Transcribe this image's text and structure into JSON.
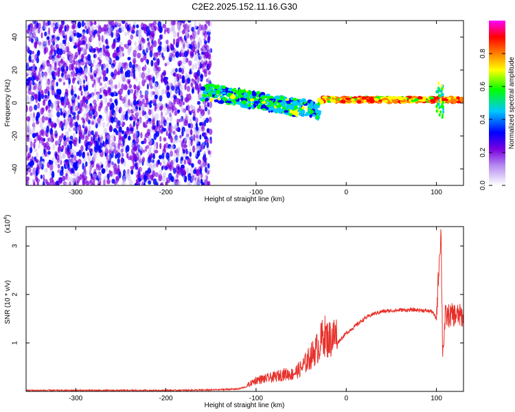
{
  "title": "C2E2.2025.152.11.16.G30",
  "chart_data": [
    {
      "type": "heatmap",
      "xlabel": "Height of straight line (km)",
      "ylabel": "Frequency (Hz)",
      "xlim": [
        -355,
        130
      ],
      "ylim": [
        -50,
        50
      ],
      "xticks": [
        "-300",
        "-200",
        "-100",
        "0",
        "100"
      ],
      "yticks": [
        "40",
        "20",
        "0",
        "-20",
        "-40"
      ],
      "colorbar": {
        "label": "Normalized spectral amplitude",
        "range": [
          0,
          1
        ],
        "ticks": [
          "0.0",
          "0.2",
          "0.4",
          "0.6",
          "0.8"
        ],
        "colormap": [
          "#c8b4f0",
          "#7a00e0",
          "#0000ff",
          "#00c8ff",
          "#00ff00",
          "#ffff00",
          "#ff8000",
          "#ff0000",
          "#ff00ff"
        ]
      },
      "features": [
        {
          "x_range": [
            -355,
            -150
          ],
          "freq_range": [
            -50,
            50
          ],
          "amplitude": "low (0.05-0.3)"
        },
        {
          "x_range": [
            -160,
            -30
          ],
          "freq_center": [
            7,
            -5
          ],
          "amplitude": "medium (0.3-0.6)"
        },
        {
          "x_range": [
            -30,
            130
          ],
          "freq_center": [
            2,
            2
          ],
          "amplitude": "high (0.7-0.9)"
        }
      ]
    },
    {
      "type": "line",
      "xlabel": "Height of straight line (km)",
      "ylabel": "SNR (10 * v/v)",
      "y_multiplier": "(x10^4)",
      "xlim": [
        -355,
        130
      ],
      "ylim": [
        0,
        3.4
      ],
      "xticks": [
        "-300",
        "-200",
        "-100",
        "0",
        "100"
      ],
      "yticks": [
        "3",
        "2",
        "1"
      ],
      "color": "#e8302a",
      "series": [
        {
          "x": [
            -355,
            -300,
            -200,
            -150,
            -120,
            -110,
            -100,
            -90,
            -80,
            -70,
            -60,
            -50,
            -40,
            -30,
            -25,
            -20,
            -10,
            0,
            10,
            20,
            30,
            40,
            60,
            80,
            95,
            100,
            103,
            105,
            107,
            110,
            120,
            130
          ],
          "y": [
            0.02,
            0.02,
            0.02,
            0.03,
            0.05,
            0.1,
            0.2,
            0.22,
            0.25,
            0.3,
            0.3,
            0.4,
            0.6,
            0.8,
            1.0,
            0.9,
            1.0,
            1.2,
            1.35,
            1.5,
            1.6,
            1.65,
            1.68,
            1.68,
            1.65,
            1.5,
            2.7,
            3.3,
            0.8,
            1.55,
            1.58,
            1.55
          ]
        }
      ]
    }
  ]
}
